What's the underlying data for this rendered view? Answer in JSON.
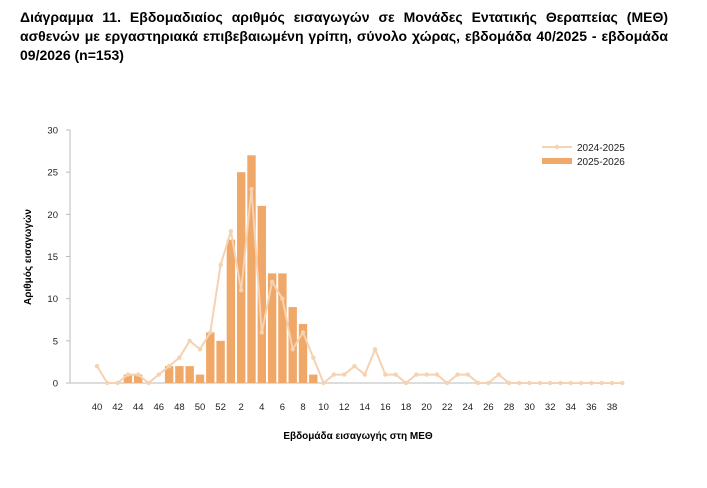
{
  "title": "Διάγραμμα 11. Εβδομαδιαίος αριθμός εισαγωγών σε Μονάδες Εντατικής Θεραπείας (ΜΕΘ) ασθενών με εργαστηριακά επιβεβαιωμένη γρίπη, σύνολο χώρας, εβδομάδα 40/2025 - εβδομάδα 09/2026 (n=153)",
  "colors": {
    "bar": "#f0a868",
    "line": "#f5d2b2"
  },
  "chart_data": {
    "type": "bar",
    "xlabel": "Εβδομάδα εισαγωγής στη ΜΕΘ",
    "ylabel": "Αριθμός εισαγωγών",
    "ylim": [
      0,
      30
    ],
    "yticks": [
      0,
      5,
      10,
      15,
      20,
      25,
      30
    ],
    "grid": false,
    "legend_position": "top-right",
    "categories": [
      "40",
      "41",
      "42",
      "43",
      "44",
      "45",
      "46",
      "47",
      "48",
      "49",
      "50",
      "51",
      "52",
      "1",
      "2",
      "3",
      "4",
      "5",
      "6",
      "7",
      "8",
      "9",
      "10",
      "11",
      "12",
      "13",
      "14",
      "15",
      "16",
      "17",
      "18",
      "19",
      "20",
      "21",
      "22",
      "23",
      "24",
      "25",
      "26",
      "27",
      "28",
      "29",
      "30",
      "31",
      "32",
      "33",
      "34",
      "35",
      "36",
      "37",
      "38",
      "39"
    ],
    "xtick_labels": [
      "40",
      "42",
      "44",
      "46",
      "48",
      "50",
      "52",
      "2",
      "4",
      "6",
      "8",
      "10",
      "12",
      "14",
      "16",
      "18",
      "20",
      "22",
      "24",
      "26",
      "28",
      "30",
      "32",
      "34",
      "36",
      "38"
    ],
    "series": [
      {
        "name": "2024-2025",
        "type": "line",
        "values": [
          2,
          0,
          0,
          1,
          1,
          0,
          1,
          2,
          3,
          5,
          4,
          6,
          14,
          18,
          11,
          23,
          6,
          12,
          10,
          4,
          6,
          3,
          0,
          1,
          1,
          2,
          1,
          4,
          1,
          1,
          0,
          1,
          1,
          1,
          0,
          1,
          1,
          0,
          0,
          1,
          0,
          0,
          0,
          0,
          0,
          0,
          0,
          0,
          0,
          0,
          0,
          0
        ]
      },
      {
        "name": "2025-2026",
        "type": "bar",
        "values": [
          0,
          0,
          0,
          1,
          1,
          0,
          0,
          2,
          2,
          2,
          1,
          6,
          5,
          17,
          25,
          27,
          21,
          13,
          13,
          9,
          7,
          1,
          null,
          null,
          null,
          null,
          null,
          null,
          null,
          null,
          null,
          null,
          null,
          null,
          null,
          null,
          null,
          null,
          null,
          null,
          null,
          null,
          null,
          null,
          null,
          null,
          null,
          null,
          null,
          null,
          null,
          null
        ]
      }
    ]
  }
}
